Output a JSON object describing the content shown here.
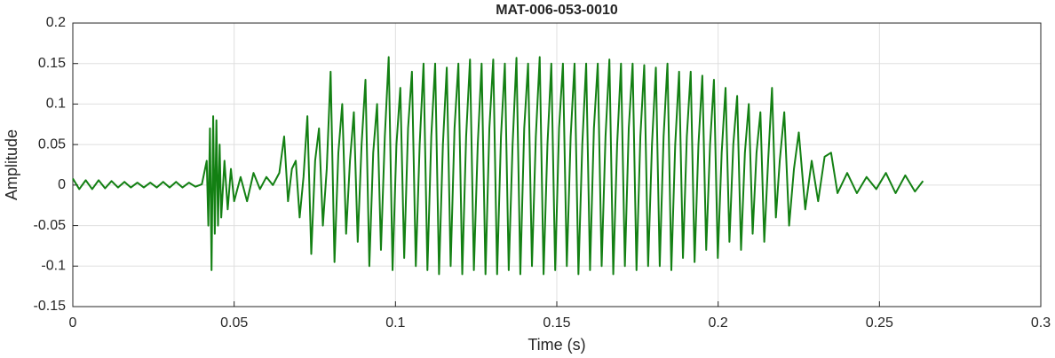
{
  "chart_data": {
    "type": "line",
    "title": "MAT-006-053-0010",
    "xlabel": "Time (s)",
    "ylabel": "Amplitude",
    "xlim": [
      0,
      0.3
    ],
    "xticks": [
      0,
      0.05,
      0.1,
      0.15,
      0.2,
      0.25,
      0.3
    ],
    "ylim": [
      -0.15,
      0.2
    ],
    "yticks": [
      -0.15,
      -0.1,
      -0.05,
      0,
      0.05,
      0.1,
      0.15,
      0.2
    ],
    "grid": true,
    "x": [
      0,
      0.002,
      0.004,
      0.006,
      0.008,
      0.01,
      0.012,
      0.014,
      0.016,
      0.018,
      0.02,
      0.022,
      0.024,
      0.026,
      0.028,
      0.03,
      0.032,
      0.034,
      0.036,
      0.038,
      0.04,
      0.0415,
      0.042,
      0.0425,
      0.043,
      0.0435,
      0.044,
      0.0445,
      0.045,
      0.0455,
      0.046,
      0.047,
      0.048,
      0.049,
      0.05,
      0.052,
      0.054,
      0.056,
      0.058,
      0.06,
      0.062,
      0.064,
      0.0655,
      0.0667,
      0.0679,
      0.0691,
      0.0703,
      0.0715,
      0.0727,
      0.0739,
      0.0751,
      0.0763,
      0.0775,
      0.0787,
      0.0799,
      0.0811,
      0.0823,
      0.0835,
      0.0847,
      0.0859,
      0.0871,
      0.0883,
      0.0895,
      0.0907,
      0.0919,
      0.0931,
      0.0943,
      0.0955,
      0.0967,
      0.0979,
      0.0991,
      0.1003,
      0.1015,
      0.1027,
      0.1039,
      0.1051,
      0.1063,
      0.1075,
      0.1087,
      0.1099,
      0.1111,
      0.1123,
      0.1135,
      0.1147,
      0.1159,
      0.1171,
      0.1183,
      0.1195,
      0.1207,
      0.1219,
      0.1231,
      0.1243,
      0.1255,
      0.1267,
      0.1279,
      0.1291,
      0.1303,
      0.1315,
      0.1327,
      0.1339,
      0.1351,
      0.1363,
      0.1375,
      0.1387,
      0.1399,
      0.1411,
      0.1423,
      0.1435,
      0.1447,
      0.1459,
      0.1471,
      0.1483,
      0.1495,
      0.1507,
      0.1519,
      0.1531,
      0.1543,
      0.1555,
      0.1567,
      0.1579,
      0.1591,
      0.1603,
      0.1615,
      0.1627,
      0.1639,
      0.1651,
      0.1663,
      0.1675,
      0.1687,
      0.1699,
      0.1711,
      0.1723,
      0.1735,
      0.1747,
      0.1759,
      0.1771,
      0.1783,
      0.1795,
      0.1807,
      0.1819,
      0.1831,
      0.1843,
      0.1855,
      0.1867,
      0.1879,
      0.1891,
      0.1903,
      0.1915,
      0.1927,
      0.1939,
      0.1951,
      0.1963,
      0.1975,
      0.1987,
      0.1999,
      0.2011,
      0.2023,
      0.2035,
      0.2047,
      0.2059,
      0.2071,
      0.2083,
      0.2095,
      0.2107,
      0.2119,
      0.2131,
      0.2143,
      0.2155,
      0.2167,
      0.2179,
      0.2191,
      0.2205,
      0.222,
      0.2235,
      0.225,
      0.227,
      0.229,
      0.231,
      0.233,
      0.235,
      0.237,
      0.24,
      0.243,
      0.246,
      0.249,
      0.252,
      0.255,
      0.258,
      0.261,
      0.2635
    ],
    "series": [
      {
        "color": "#138013",
        "values": [
          0.008,
          -0.005,
          0.006,
          -0.005,
          0.006,
          -0.004,
          0.005,
          -0.003,
          0.004,
          -0.003,
          0.003,
          -0.003,
          0.003,
          -0.003,
          0.004,
          -0.003,
          0.004,
          -0.003,
          0.003,
          -0.002,
          0.001,
          0.03,
          -0.05,
          0.07,
          -0.105,
          0.085,
          -0.06,
          0.08,
          -0.05,
          0.05,
          -0.04,
          0.03,
          -0.03,
          0.02,
          -0.02,
          0.01,
          -0.02,
          0.015,
          -0.005,
          0.01,
          0,
          0.015,
          0.06,
          -0.02,
          0.02,
          0.03,
          -0.04,
          0.01,
          0.085,
          -0.085,
          0.03,
          0.07,
          -0.05,
          0.02,
          0.14,
          -0.095,
          0.04,
          0.1,
          -0.06,
          0.03,
          0.09,
          -0.07,
          0.05,
          0.13,
          -0.1,
          0.04,
          0.1,
          -0.08,
          0.06,
          0.158,
          -0.105,
          0.05,
          0.12,
          -0.09,
          0.07,
          0.14,
          -0.1,
          0.05,
          0.15,
          -0.105,
          0.06,
          0.15,
          -0.11,
          0.05,
          0.145,
          -0.1,
          0.07,
          0.15,
          -0.11,
          0.06,
          0.155,
          -0.105,
          0.05,
          0.15,
          -0.11,
          0.07,
          0.155,
          -0.11,
          0.06,
          0.15,
          -0.105,
          0.05,
          0.157,
          -0.11,
          0.07,
          0.15,
          -0.1,
          0.06,
          0.158,
          -0.11,
          0.05,
          0.15,
          -0.105,
          0.07,
          0.15,
          -0.1,
          0.06,
          0.15,
          -0.11,
          0.05,
          0.15,
          -0.105,
          0.07,
          0.15,
          -0.1,
          0.06,
          0.155,
          -0.11,
          0.05,
          0.15,
          -0.1,
          0.07,
          0.15,
          -0.105,
          0.06,
          0.148,
          -0.1,
          0.05,
          0.145,
          -0.1,
          0.06,
          0.15,
          -0.105,
          0.05,
          0.14,
          -0.09,
          0.06,
          0.14,
          -0.095,
          0.05,
          0.135,
          -0.08,
          0.05,
          0.13,
          -0.09,
          0.04,
          0.12,
          -0.07,
          0.05,
          0.11,
          -0.08,
          0.04,
          0.1,
          -0.06,
          0.04,
          0.09,
          -0.07,
          0.03,
          0.12,
          -0.04,
          0.03,
          0.09,
          -0.05,
          0.02,
          0.065,
          -0.03,
          0.03,
          -0.02,
          0.035,
          0.04,
          -0.01,
          0.015,
          -0.01,
          0.01,
          -0.005,
          0.015,
          -0.01,
          0.012,
          -0.008,
          0.005
        ]
      }
    ]
  }
}
